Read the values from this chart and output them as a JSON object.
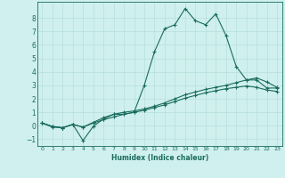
{
  "x": [
    0,
    1,
    2,
    3,
    4,
    5,
    6,
    7,
    8,
    9,
    10,
    11,
    12,
    13,
    14,
    15,
    16,
    17,
    18,
    19,
    20,
    21,
    22,
    23
  ],
  "line1": [
    0.2,
    -0.1,
    -0.15,
    0.1,
    -1.1,
    -0.05,
    0.5,
    0.85,
    0.85,
    1.0,
    3.0,
    5.5,
    7.2,
    7.5,
    8.7,
    7.8,
    7.5,
    8.3,
    6.7,
    4.4,
    3.4,
    3.4,
    2.8,
    2.8
  ],
  "line2": [
    0.2,
    -0.05,
    -0.15,
    0.1,
    -0.1,
    0.25,
    0.6,
    0.85,
    1.0,
    1.1,
    1.25,
    1.45,
    1.7,
    2.0,
    2.3,
    2.5,
    2.7,
    2.85,
    3.0,
    3.2,
    3.4,
    3.55,
    3.25,
    2.85
  ],
  "line3": [
    0.2,
    -0.05,
    -0.15,
    0.1,
    -0.1,
    0.2,
    0.45,
    0.65,
    0.85,
    1.0,
    1.15,
    1.35,
    1.55,
    1.8,
    2.05,
    2.25,
    2.45,
    2.6,
    2.75,
    2.85,
    2.95,
    2.85,
    2.65,
    2.55
  ],
  "line_color": "#1a6b5e",
  "bg_color": "#cff0ee",
  "grid_color": "#b8e0dc",
  "xlabel": "Humidex (Indice chaleur)",
  "ylim": [
    -1.5,
    9.2
  ],
  "xlim": [
    -0.5,
    23.5
  ],
  "yticks": [
    -1,
    0,
    1,
    2,
    3,
    4,
    5,
    6,
    7,
    8
  ],
  "xticks": [
    0,
    1,
    2,
    3,
    4,
    5,
    6,
    7,
    8,
    9,
    10,
    11,
    12,
    13,
    14,
    15,
    16,
    17,
    18,
    19,
    20,
    21,
    22,
    23
  ]
}
